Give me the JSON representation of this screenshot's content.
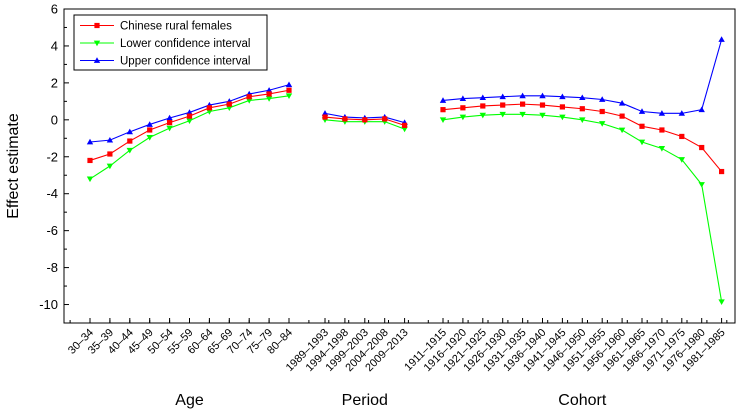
{
  "chart_data": {
    "type": "line",
    "ylabel": "Effect estimate",
    "ylim": [
      -11,
      6
    ],
    "yticks": [
      -10,
      -8,
      -6,
      -4,
      -2,
      0,
      2,
      4,
      6
    ],
    "legend_position": "top-left",
    "colors": {
      "point": "#ff0000",
      "lower": "#00ff00",
      "upper": "#0000ff"
    },
    "legend": [
      {
        "key": "point",
        "label": "Chinese rural females",
        "marker": "square"
      },
      {
        "key": "lower",
        "label": "Lower confidence interval",
        "marker": "triangle-down"
      },
      {
        "key": "upper",
        "label": "Upper confidence interval",
        "marker": "triangle-up"
      }
    ],
    "groups": [
      {
        "name": "Age",
        "categories": [
          "30–34",
          "35–39",
          "40–44",
          "45–49",
          "50–54",
          "55–59",
          "60–64",
          "65–69",
          "70–74",
          "75–79",
          "80–84"
        ],
        "series": {
          "point": [
            -2.2,
            -1.85,
            -1.15,
            -0.55,
            -0.15,
            0.2,
            0.65,
            0.85,
            1.25,
            1.4,
            1.6
          ],
          "lower": [
            -3.2,
            -2.5,
            -1.65,
            -0.95,
            -0.45,
            -0.05,
            0.45,
            0.65,
            1.05,
            1.15,
            1.3
          ],
          "upper": [
            -1.2,
            -1.1,
            -0.65,
            -0.25,
            0.1,
            0.4,
            0.8,
            1.0,
            1.4,
            1.6,
            1.9
          ]
        }
      },
      {
        "name": "Period",
        "categories": [
          "1989–1993",
          "1994–1998",
          "1999–2003",
          "2004–2008",
          "2009–2013"
        ],
        "series": {
          "point": [
            0.15,
            0.05,
            0.0,
            0.05,
            -0.3
          ],
          "lower": [
            0.0,
            -0.1,
            -0.1,
            -0.1,
            -0.5
          ],
          "upper": [
            0.35,
            0.15,
            0.1,
            0.15,
            -0.15
          ]
        }
      },
      {
        "name": "Cohort",
        "categories": [
          "1911–1915",
          "1916–1920",
          "1921–1925",
          "1926–1930",
          "1931–1935",
          "1936–1940",
          "1941–1945",
          "1946–1950",
          "1951–1955",
          "1956–1960",
          "1961–1965",
          "1966–1970",
          "1971–1975",
          "1976–1980",
          "1981–1985"
        ],
        "series": {
          "point": [
            0.55,
            0.65,
            0.75,
            0.8,
            0.85,
            0.8,
            0.7,
            0.6,
            0.45,
            0.2,
            -0.35,
            -0.55,
            -0.9,
            -1.5,
            -2.8
          ],
          "lower": [
            0.0,
            0.15,
            0.25,
            0.3,
            0.3,
            0.25,
            0.15,
            0.0,
            -0.2,
            -0.55,
            -1.2,
            -1.55,
            -2.15,
            -3.5,
            -9.85
          ],
          "upper": [
            1.05,
            1.15,
            1.2,
            1.25,
            1.3,
            1.3,
            1.25,
            1.2,
            1.1,
            0.9,
            0.45,
            0.35,
            0.35,
            0.55,
            4.35
          ]
        }
      }
    ]
  }
}
